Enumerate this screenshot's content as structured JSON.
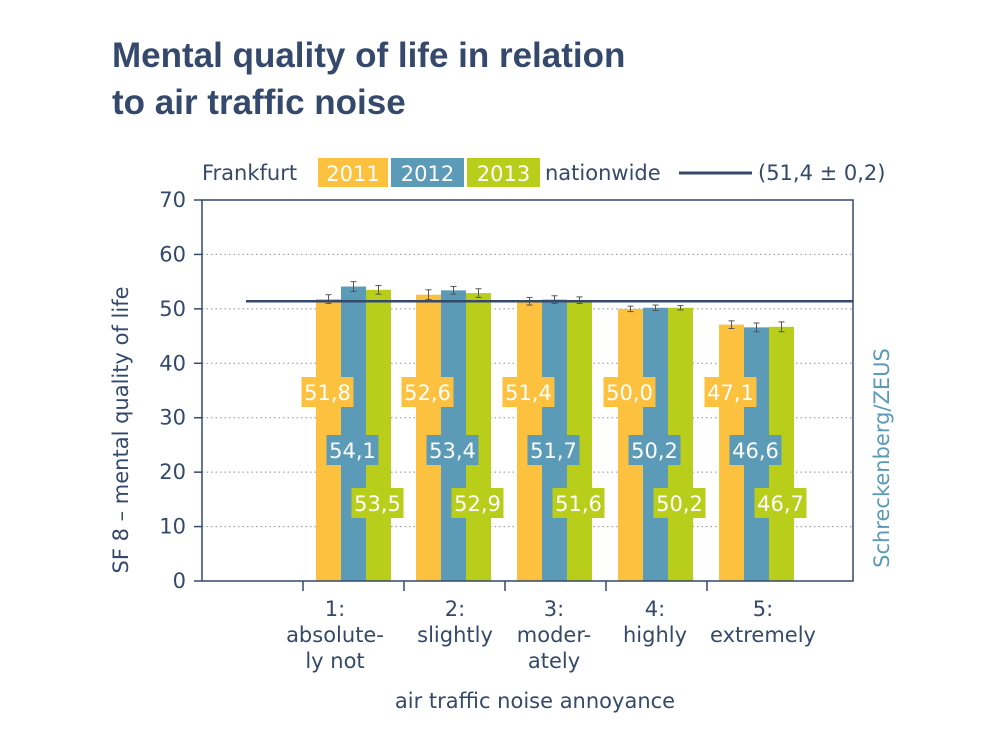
{
  "title_lines": [
    "Mental quality of life in relation",
    "to air traffic noise"
  ],
  "legend": {
    "city_label": "Frankfurt",
    "reference_label": "nationwide",
    "reference_text": "(51,4 ± 0,2)"
  },
  "source_label": "Schreckenberg/ZEUS",
  "colors": {
    "2011": "#fbc13f",
    "2012": "#5b9bb7",
    "2013": "#b9cd1b",
    "reference": "#34496b",
    "axis": "#34496b",
    "source": "#5b9bb7"
  },
  "chart_data": {
    "type": "bar",
    "xlabel": "air traffic noise annoyance",
    "ylabel": "SF 8 – mental quality of life",
    "ylim": [
      0,
      70
    ],
    "yticks": [
      0,
      10,
      20,
      30,
      40,
      50,
      60,
      70
    ],
    "grid": true,
    "legend_position": "top",
    "categories": [
      [
        "1:",
        "absolute-",
        "ly not"
      ],
      [
        "2:",
        "slightly"
      ],
      [
        "3:",
        "moder-",
        "ately"
      ],
      [
        "4:",
        "highly"
      ],
      [
        "5:",
        "extremely"
      ]
    ],
    "series": [
      {
        "name": "2011",
        "values": [
          51.8,
          52.6,
          51.4,
          50.0,
          47.1
        ],
        "labels": [
          "51,8",
          "52,6",
          "51,4",
          "50,0",
          "47,1"
        ],
        "errors": [
          0.8,
          0.9,
          0.7,
          0.5,
          0.7
        ]
      },
      {
        "name": "2012",
        "values": [
          54.1,
          53.4,
          51.7,
          50.2,
          46.6
        ],
        "labels": [
          "54,1",
          "53,4",
          "51,7",
          "50,2",
          "46,6"
        ],
        "errors": [
          0.9,
          0.7,
          0.7,
          0.5,
          0.8
        ]
      },
      {
        "name": "2013",
        "values": [
          53.5,
          52.9,
          51.6,
          50.2,
          46.7
        ],
        "labels": [
          "53,5",
          "52,9",
          "51,6",
          "50,2",
          "46,7"
        ],
        "errors": [
          0.8,
          0.8,
          0.6,
          0.4,
          0.9
        ]
      }
    ],
    "reference_line": {
      "value": 51.4,
      "label": "nationwide"
    }
  }
}
